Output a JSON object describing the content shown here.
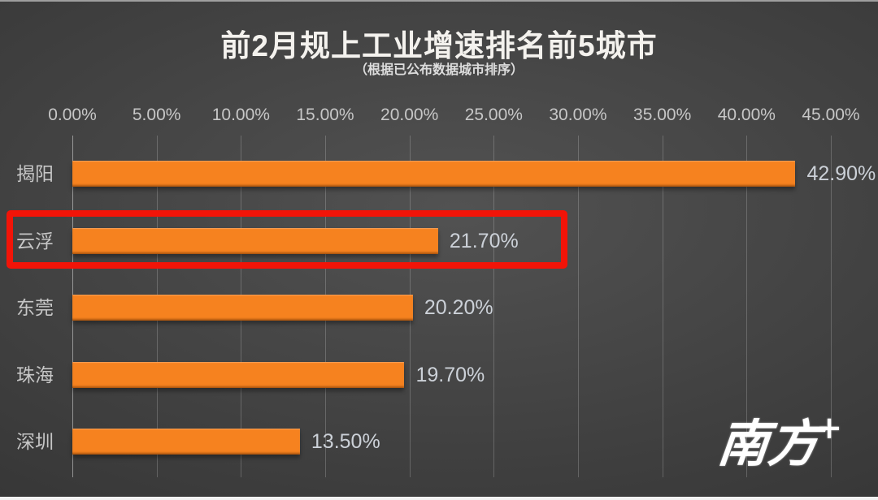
{
  "slide": {
    "title": "前2月规上工业增速排名前5城市",
    "subtitle": "（根据已公布数据城市排序）",
    "logo_text": "南方",
    "logo_plus": "+"
  },
  "chart_data": {
    "type": "bar",
    "orientation": "horizontal",
    "title": "前2月规上工业增速排名前5城市",
    "subtitle": "（根据已公布数据城市排序）",
    "categories": [
      "揭阳",
      "云浮",
      "东莞",
      "珠海",
      "深圳"
    ],
    "values": [
      42.9,
      21.7,
      20.2,
      19.7,
      13.5
    ],
    "value_labels": [
      "42.90%",
      "21.70%",
      "20.20%",
      "19.70%",
      "13.50%"
    ],
    "xlabel": "",
    "ylabel": "",
    "xlim": [
      0,
      45
    ],
    "axis_ticks": [
      "0.00%",
      "5.00%",
      "10.00%",
      "15.00%",
      "20.00%",
      "25.00%",
      "30.00%",
      "35.00%",
      "40.00%",
      "45.00%"
    ],
    "tick_values": [
      0,
      5,
      10,
      15,
      20,
      25,
      30,
      35,
      40,
      45
    ],
    "grid": true,
    "legend": "none",
    "highlighted_category": "云浮",
    "highlight_index": 1,
    "colors": {
      "bar": "#f6821f",
      "highlight_box": "#f21408",
      "background_center": "#525252",
      "background_edge": "#282828",
      "tick_text": "#c7c7c7",
      "value_text": "#ccd1d8",
      "title_text": "#f4f2ee"
    }
  }
}
